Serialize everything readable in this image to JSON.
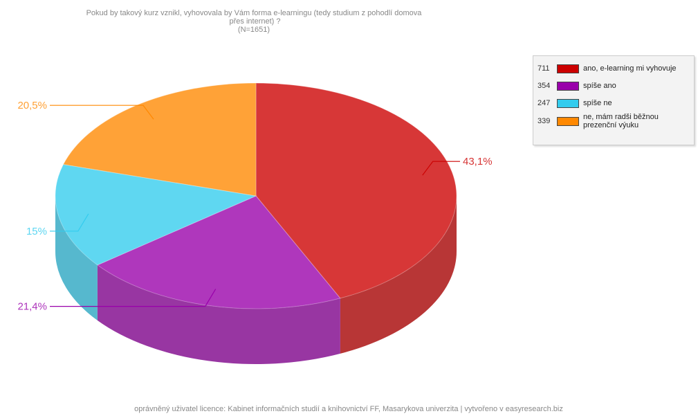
{
  "chart_data": {
    "type": "pie3d",
    "title": "Pokud by takový kurz vznikl, vyhovovala by Vám forma e-learningu (tedy studium z pohodlí domova přes internet) ?",
    "subtitle": "(N=1651)",
    "categories": [
      "ano, e-learning mi vyhovuje",
      "spíše ano",
      "spíše ne",
      "ne, mám radši běžnou prezenční výuku"
    ],
    "counts": [
      711,
      354,
      247,
      339
    ],
    "values": [
      43.1,
      21.4,
      15,
      20.5
    ],
    "value_labels": [
      "43,1%",
      "21,4%",
      "15%",
      "20,5%"
    ],
    "colors": [
      "#cc0000",
      "#9900aa",
      "#33ccee",
      "#ff8800"
    ],
    "footer": "oprávněný uživatel licence: Kabinet informačních studií a knihovnictví FF, Masarykova univerzita | vytvořeno v easyresearch.biz"
  }
}
